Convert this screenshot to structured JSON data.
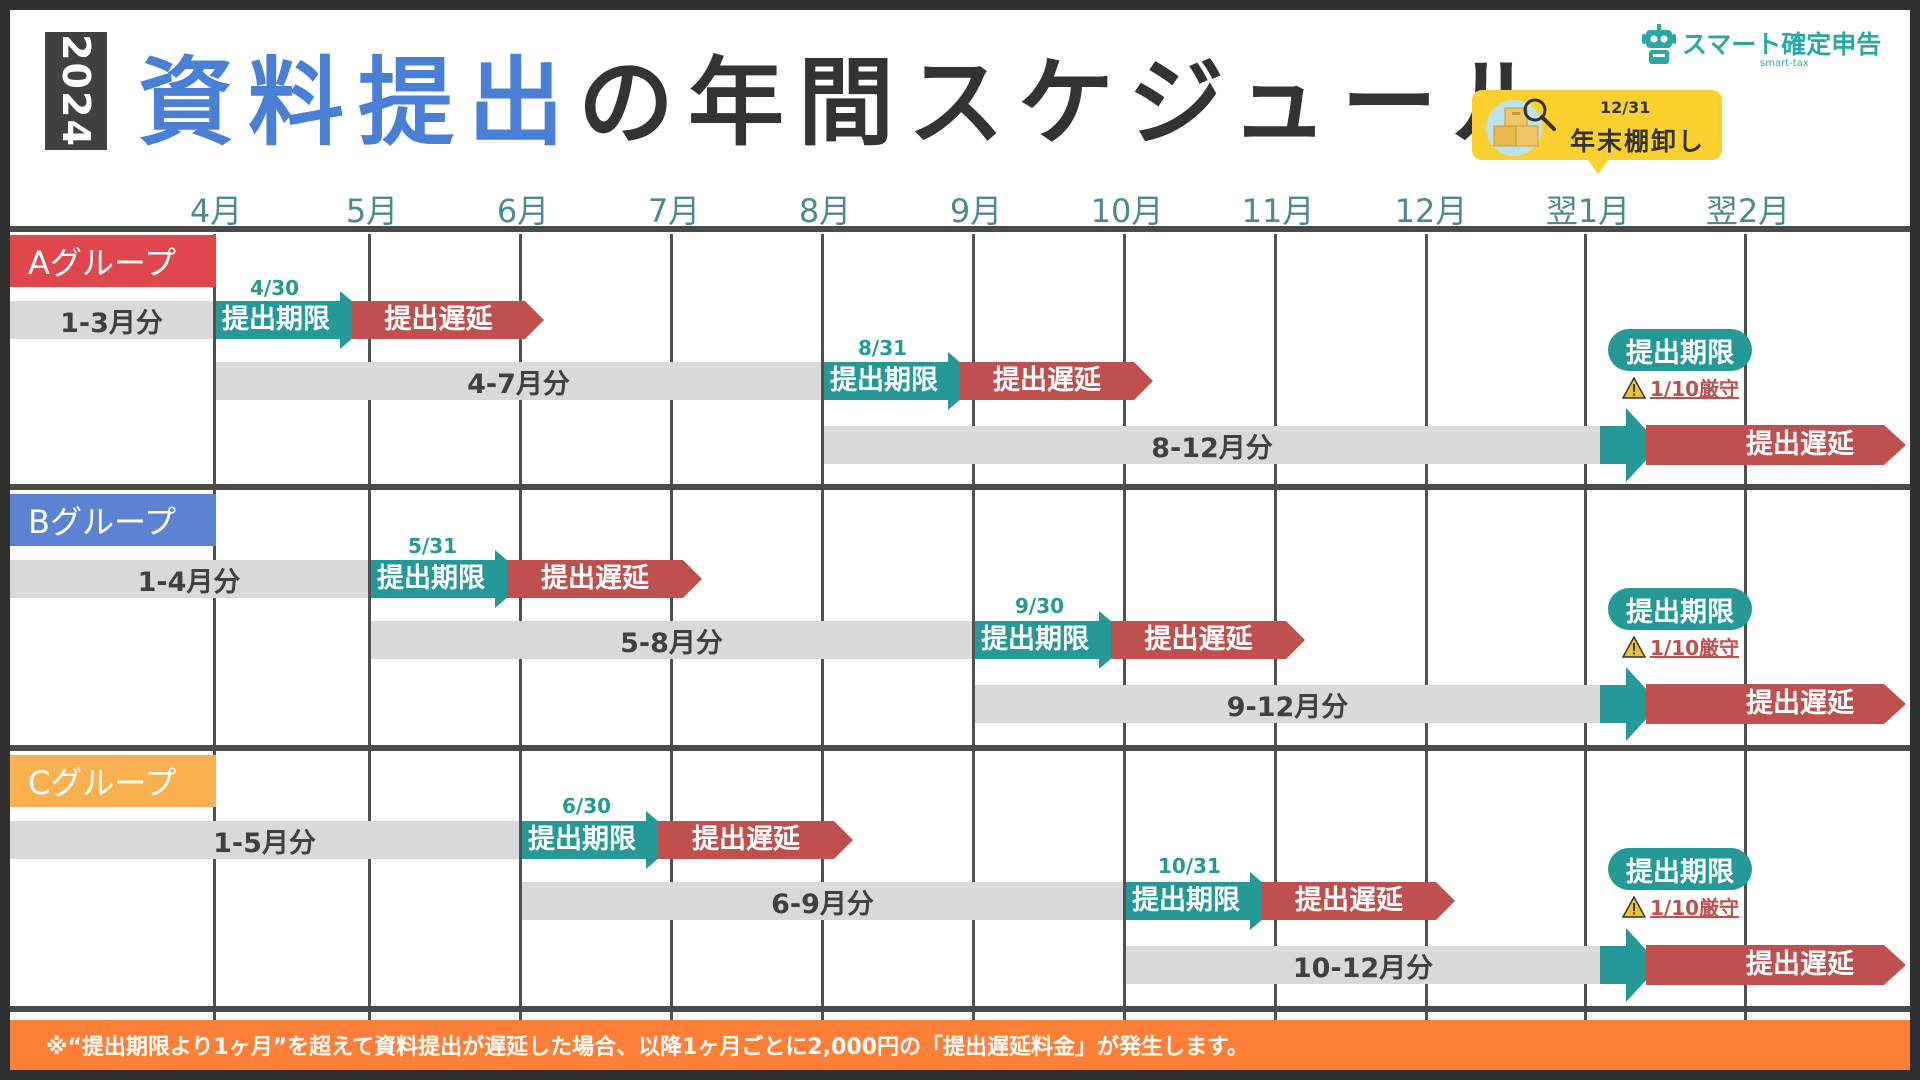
{
  "header": {
    "year": "2024",
    "title_part1": "資料提出",
    "title_part2": "の年間スケジュール"
  },
  "logo": {
    "name": "スマート確定申告",
    "sub": "smart-tax"
  },
  "year_end": {
    "date": "12/31",
    "label": "年末棚卸し"
  },
  "months": [
    "4月",
    "5月",
    "6月",
    "7月",
    "8月",
    "9月",
    "10月",
    "11月",
    "12月",
    "翌1月",
    "翌2月"
  ],
  "groups": [
    {
      "name": "Aグループ",
      "color": "#e0474c",
      "periods": [
        {
          "label": "1-3月分",
          "deadline_date": "4/30",
          "deadline_label": "提出期限",
          "late_label": "提出遅延"
        },
        {
          "label": "4-7月分",
          "deadline_date": "8/31",
          "deadline_label": "提出期限",
          "late_label": "提出遅延"
        },
        {
          "label": "8-12月分",
          "deadline_label": "提出期限",
          "note": "1/10厳守",
          "late_label": "提出遅延"
        }
      ]
    },
    {
      "name": "Bグループ",
      "color": "#5b83d2",
      "periods": [
        {
          "label": "1-4月分",
          "deadline_date": "5/31",
          "deadline_label": "提出期限",
          "late_label": "提出遅延"
        },
        {
          "label": "5-8月分",
          "deadline_date": "9/30",
          "deadline_label": "提出期限",
          "late_label": "提出遅延"
        },
        {
          "label": "9-12月分",
          "deadline_label": "提出期限",
          "note": "1/10厳守",
          "late_label": "提出遅延"
        }
      ]
    },
    {
      "name": "Cグループ",
      "color": "#f9b14f",
      "periods": [
        {
          "label": "1-5月分",
          "deadline_date": "6/30",
          "deadline_label": "提出期限",
          "late_label": "提出遅延"
        },
        {
          "label": "6-9月分",
          "deadline_date": "10/31",
          "deadline_label": "提出期限",
          "late_label": "提出遅延"
        },
        {
          "label": "10-12月分",
          "deadline_label": "提出期限",
          "note": "1/10厳守",
          "late_label": "提出遅延"
        }
      ]
    }
  ],
  "footer": "※“提出期限より1ヶ月”を超えて資料提出が遅延した場合、以降1ヶ月ごとに2,000円の「提出遅延料金」が発生します。",
  "colors": {
    "teal": "#259997",
    "red": "#c0504d",
    "gray_bar": "#d9d9da",
    "title_blue": "#4a7fd6",
    "footer": "#fe7f37",
    "year_end": "#fcd02e"
  }
}
